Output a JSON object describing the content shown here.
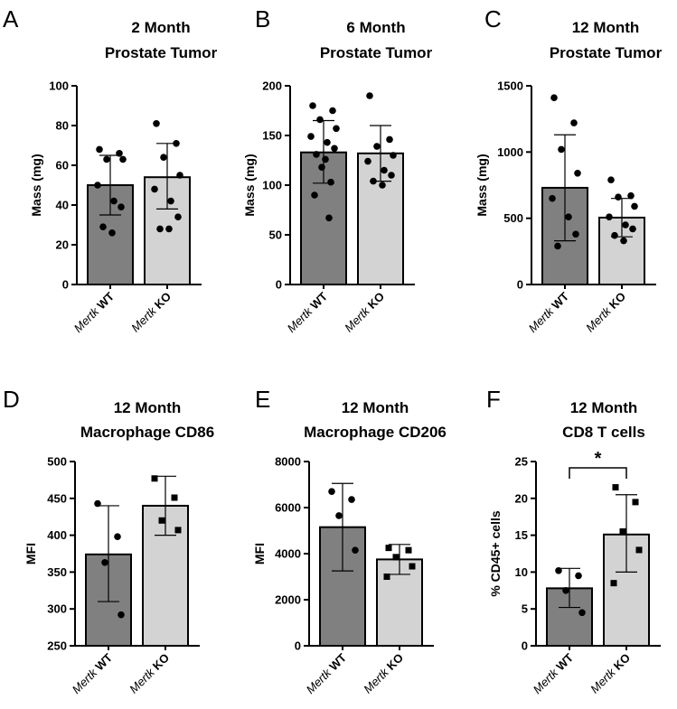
{
  "chart_data": [
    {
      "panel": "A",
      "type": "bar",
      "title": [
        "2 Month",
        "Prostate Tumor"
      ],
      "ylabel": "Mass (mg)",
      "ylim": [
        0,
        100
      ],
      "yticks": [
        0,
        20,
        40,
        60,
        80,
        100
      ],
      "categories": [
        {
          "italic": "Mertk",
          "bold": "WT"
        },
        {
          "italic": "Mertk",
          "bold": "KO"
        }
      ],
      "colors": [
        "#808080",
        "#d3d3d3"
      ],
      "marker": "circle",
      "series": [
        {
          "mean": 50,
          "err_low": 35,
          "err_high": 65,
          "points": [
            68,
            66,
            63,
            63,
            50,
            42,
            39,
            29,
            26
          ]
        },
        {
          "mean": 54,
          "err_low": 38,
          "err_high": 71,
          "points": [
            81,
            71,
            64,
            55,
            48,
            42,
            34,
            28,
            28
          ]
        }
      ]
    },
    {
      "panel": "B",
      "type": "bar",
      "title": [
        "6 Month",
        "Prostate Tumor"
      ],
      "ylabel": "Mass (mg)",
      "ylim": [
        0,
        200
      ],
      "yticks": [
        0,
        50,
        100,
        150,
        200
      ],
      "categories": [
        {
          "italic": "Mertk",
          "bold": "WT"
        },
        {
          "italic": "Mertk",
          "bold": "KO"
        }
      ],
      "colors": [
        "#808080",
        "#d3d3d3"
      ],
      "marker": "circle",
      "series": [
        {
          "mean": 133,
          "err_low": 102,
          "err_high": 165,
          "points": [
            180,
            175,
            166,
            157,
            149,
            143,
            137,
            131,
            126,
            118,
            103,
            90,
            67
          ]
        },
        {
          "mean": 132,
          "err_low": 104,
          "err_high": 160,
          "points": [
            190,
            146,
            139,
            130,
            124,
            115,
            110,
            104,
            100
          ]
        }
      ]
    },
    {
      "panel": "C",
      "type": "bar",
      "title": [
        "12 Month",
        "Prostate Tumor"
      ],
      "ylabel": "Mass (mg)",
      "ylim": [
        0,
        1500
      ],
      "yticks": [
        0,
        500,
        1000,
        1500
      ],
      "categories": [
        {
          "italic": "Mertk",
          "bold": "WT"
        },
        {
          "italic": "Mertk",
          "bold": "KO"
        }
      ],
      "colors": [
        "#808080",
        "#d3d3d3"
      ],
      "marker": "circle",
      "series": [
        {
          "mean": 730,
          "err_low": 330,
          "err_high": 1130,
          "points": [
            1410,
            1220,
            1020,
            840,
            650,
            510,
            380,
            290
          ]
        },
        {
          "mean": 505,
          "err_low": 360,
          "err_high": 650,
          "points": [
            790,
            670,
            660,
            590,
            510,
            450,
            420,
            370,
            330
          ]
        }
      ]
    },
    {
      "panel": "D",
      "type": "bar",
      "title": [
        "12 Month",
        "Macrophage CD86"
      ],
      "ylabel": "MFI",
      "ylim": [
        250,
        500
      ],
      "yticks": [
        250,
        300,
        350,
        400,
        450,
        500
      ],
      "categories": [
        {
          "italic": "Mertk",
          "bold": "WT"
        },
        {
          "italic": "Mertk",
          "bold": "KO"
        }
      ],
      "colors": [
        "#808080",
        "#d3d3d3"
      ],
      "marker": [
        "circle",
        "square"
      ],
      "series": [
        {
          "mean": 374,
          "err_low": 310,
          "err_high": 440,
          "points": [
            443,
            398,
            363,
            292
          ]
        },
        {
          "mean": 440,
          "err_low": 400,
          "err_high": 480,
          "points": [
            477,
            451,
            420,
            407
          ]
        }
      ]
    },
    {
      "panel": "E",
      "type": "bar",
      "title": [
        "12 Month",
        "Macrophage CD206"
      ],
      "ylabel": "MFI",
      "ylim": [
        0,
        8000
      ],
      "yticks": [
        0,
        2000,
        4000,
        6000,
        8000
      ],
      "categories": [
        {
          "italic": "Mertk",
          "bold": "WT"
        },
        {
          "italic": "Mertk",
          "bold": "KO"
        }
      ],
      "colors": [
        "#808080",
        "#d3d3d3"
      ],
      "marker": [
        "circle",
        "square"
      ],
      "series": [
        {
          "mean": 5150,
          "err_low": 3250,
          "err_high": 7050,
          "points": [
            6700,
            6350,
            5650,
            4150
          ]
        },
        {
          "mean": 3750,
          "err_low": 3100,
          "err_high": 4400,
          "points": [
            4250,
            4150,
            3850,
            3450,
            3000
          ]
        }
      ]
    },
    {
      "panel": "F",
      "type": "bar",
      "title": [
        "12 Month",
        "CD8 T cells"
      ],
      "ylabel": "% CD45+ cells",
      "ylim": [
        0,
        25
      ],
      "yticks": [
        0,
        5,
        10,
        15,
        20,
        25
      ],
      "categories": [
        {
          "italic": "Mertk",
          "bold": "WT"
        },
        {
          "italic": "Mertk",
          "bold": "KO"
        }
      ],
      "colors": [
        "#808080",
        "#d3d3d3"
      ],
      "marker": [
        "circle",
        "square"
      ],
      "series": [
        {
          "mean": 7.8,
          "err_low": 5.2,
          "err_high": 10.5,
          "points": [
            10.2,
            9.5,
            7.5,
            4.5
          ]
        },
        {
          "mean": 15.1,
          "err_low": 10,
          "err_high": 20.5,
          "points": [
            21.5,
            19.5,
            15.5,
            13,
            8.5
          ]
        }
      ],
      "significance": "*"
    }
  ]
}
